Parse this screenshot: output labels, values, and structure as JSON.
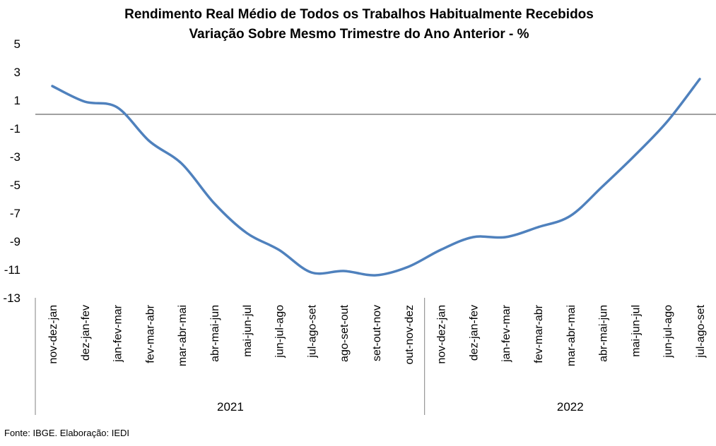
{
  "chart_data": {
    "type": "line",
    "title": "Rendimento Real Médio de Todos os Trabalhos Habitualmente Recebidos",
    "subtitle": "Variação Sobre Mesmo Trimestre do Ano Anterior - %",
    "xlabel": "",
    "ylabel": "",
    "ylim": [
      -13,
      5
    ],
    "yticks": [
      5,
      3,
      1,
      -1,
      -3,
      -5,
      -7,
      -9,
      -11,
      -13
    ],
    "grid": false,
    "legend": "none",
    "line_color": "#4F81BD",
    "categories": [
      "nov-dez-jan",
      "dez-jan-fev",
      "jan-fev-mar",
      "fev-mar-abr",
      "mar-abr-mai",
      "abr-mai-jun",
      "mai-jun-jul",
      "jun-jul-ago",
      "jul-ago-set",
      "ago-set-out",
      "set-out-nov",
      "out-nov-dez",
      "nov-dez-jan",
      "dez-jan-fev",
      "jan-fev-mar",
      "fev-mar-abr",
      "mar-abr-mai",
      "abr-mai-jun",
      "mai-jun-jul",
      "jun-jul-ago",
      "jul-ago-set"
    ],
    "year_groups": [
      {
        "label": "2021",
        "count": 12
      },
      {
        "label": "2022",
        "count": 9
      }
    ],
    "series": [
      {
        "values": [
          2.0,
          0.9,
          0.5,
          -1.9,
          -3.5,
          -6.3,
          -8.4,
          -9.6,
          -11.2,
          -11.1,
          -11.4,
          -10.8,
          -9.6,
          -8.7,
          -8.7,
          -8.0,
          -7.2,
          -5.1,
          -2.9,
          -0.5,
          2.5
        ]
      }
    ]
  },
  "source": "Fonte: IBGE. Elaboração: IEDI"
}
